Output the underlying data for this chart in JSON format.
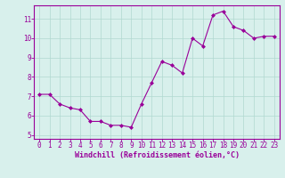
{
  "x": [
    0,
    1,
    2,
    3,
    4,
    5,
    6,
    7,
    8,
    9,
    10,
    11,
    12,
    13,
    14,
    15,
    16,
    17,
    18,
    19,
    20,
    21,
    22,
    23
  ],
  "y": [
    7.1,
    7.1,
    6.6,
    6.4,
    6.3,
    5.7,
    5.7,
    5.5,
    5.5,
    5.4,
    6.6,
    7.7,
    8.8,
    8.6,
    8.2,
    10.0,
    9.6,
    11.2,
    11.4,
    10.6,
    10.4,
    10.0,
    10.1,
    10.1
  ],
  "line_color": "#990099",
  "marker": "D",
  "marker_size": 2.0,
  "xlabel": "Windchill (Refroidissement éolien,°C)",
  "xlabel_color": "#990099",
  "background_color": "#d8f0ec",
  "grid_color": "#b0d8d0",
  "tick_color": "#990099",
  "ylim": [
    4.8,
    11.7
  ],
  "xlim": [
    -0.5,
    23.5
  ],
  "yticks": [
    5,
    6,
    7,
    8,
    9,
    10,
    11
  ],
  "xticks": [
    0,
    1,
    2,
    3,
    4,
    5,
    6,
    7,
    8,
    9,
    10,
    11,
    12,
    13,
    14,
    15,
    16,
    17,
    18,
    19,
    20,
    21,
    22,
    23
  ],
  "spine_color": "#990099",
  "label_fontsize": 6.0,
  "tick_fontsize": 5.5,
  "linewidth": 0.8
}
